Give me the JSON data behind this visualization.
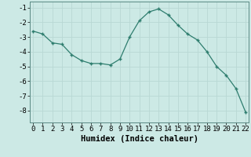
{
  "xlabel": "Humidex (Indice chaleur)",
  "x": [
    0,
    1,
    2,
    3,
    4,
    5,
    6,
    7,
    8,
    9,
    10,
    11,
    12,
    13,
    14,
    15,
    16,
    17,
    18,
    19,
    20,
    21,
    22
  ],
  "y": [
    -2.6,
    -2.8,
    -3.4,
    -3.5,
    -4.2,
    -4.6,
    -4.8,
    -4.8,
    -4.9,
    -4.5,
    -3.0,
    -1.9,
    -1.3,
    -1.1,
    -1.5,
    -2.2,
    -2.8,
    -3.2,
    -4.0,
    -5.0,
    -5.6,
    -6.5,
    -8.1
  ],
  "line_color": "#2e7d6e",
  "marker": "+",
  "bg_color": "#cce9e5",
  "grid_color": "#b8d8d4",
  "tick_label_size": 6.5,
  "xlabel_size": 7.5,
  "ylim": [
    -8.8,
    -0.6
  ],
  "yticks": [
    -8,
    -7,
    -6,
    -5,
    -4,
    -3,
    -2,
    -1
  ],
  "xticks": [
    0,
    1,
    2,
    3,
    4,
    5,
    6,
    7,
    8,
    9,
    10,
    11,
    12,
    13,
    14,
    15,
    16,
    17,
    18,
    19,
    20,
    21,
    22
  ],
  "xlim": [
    -0.3,
    22.3
  ]
}
